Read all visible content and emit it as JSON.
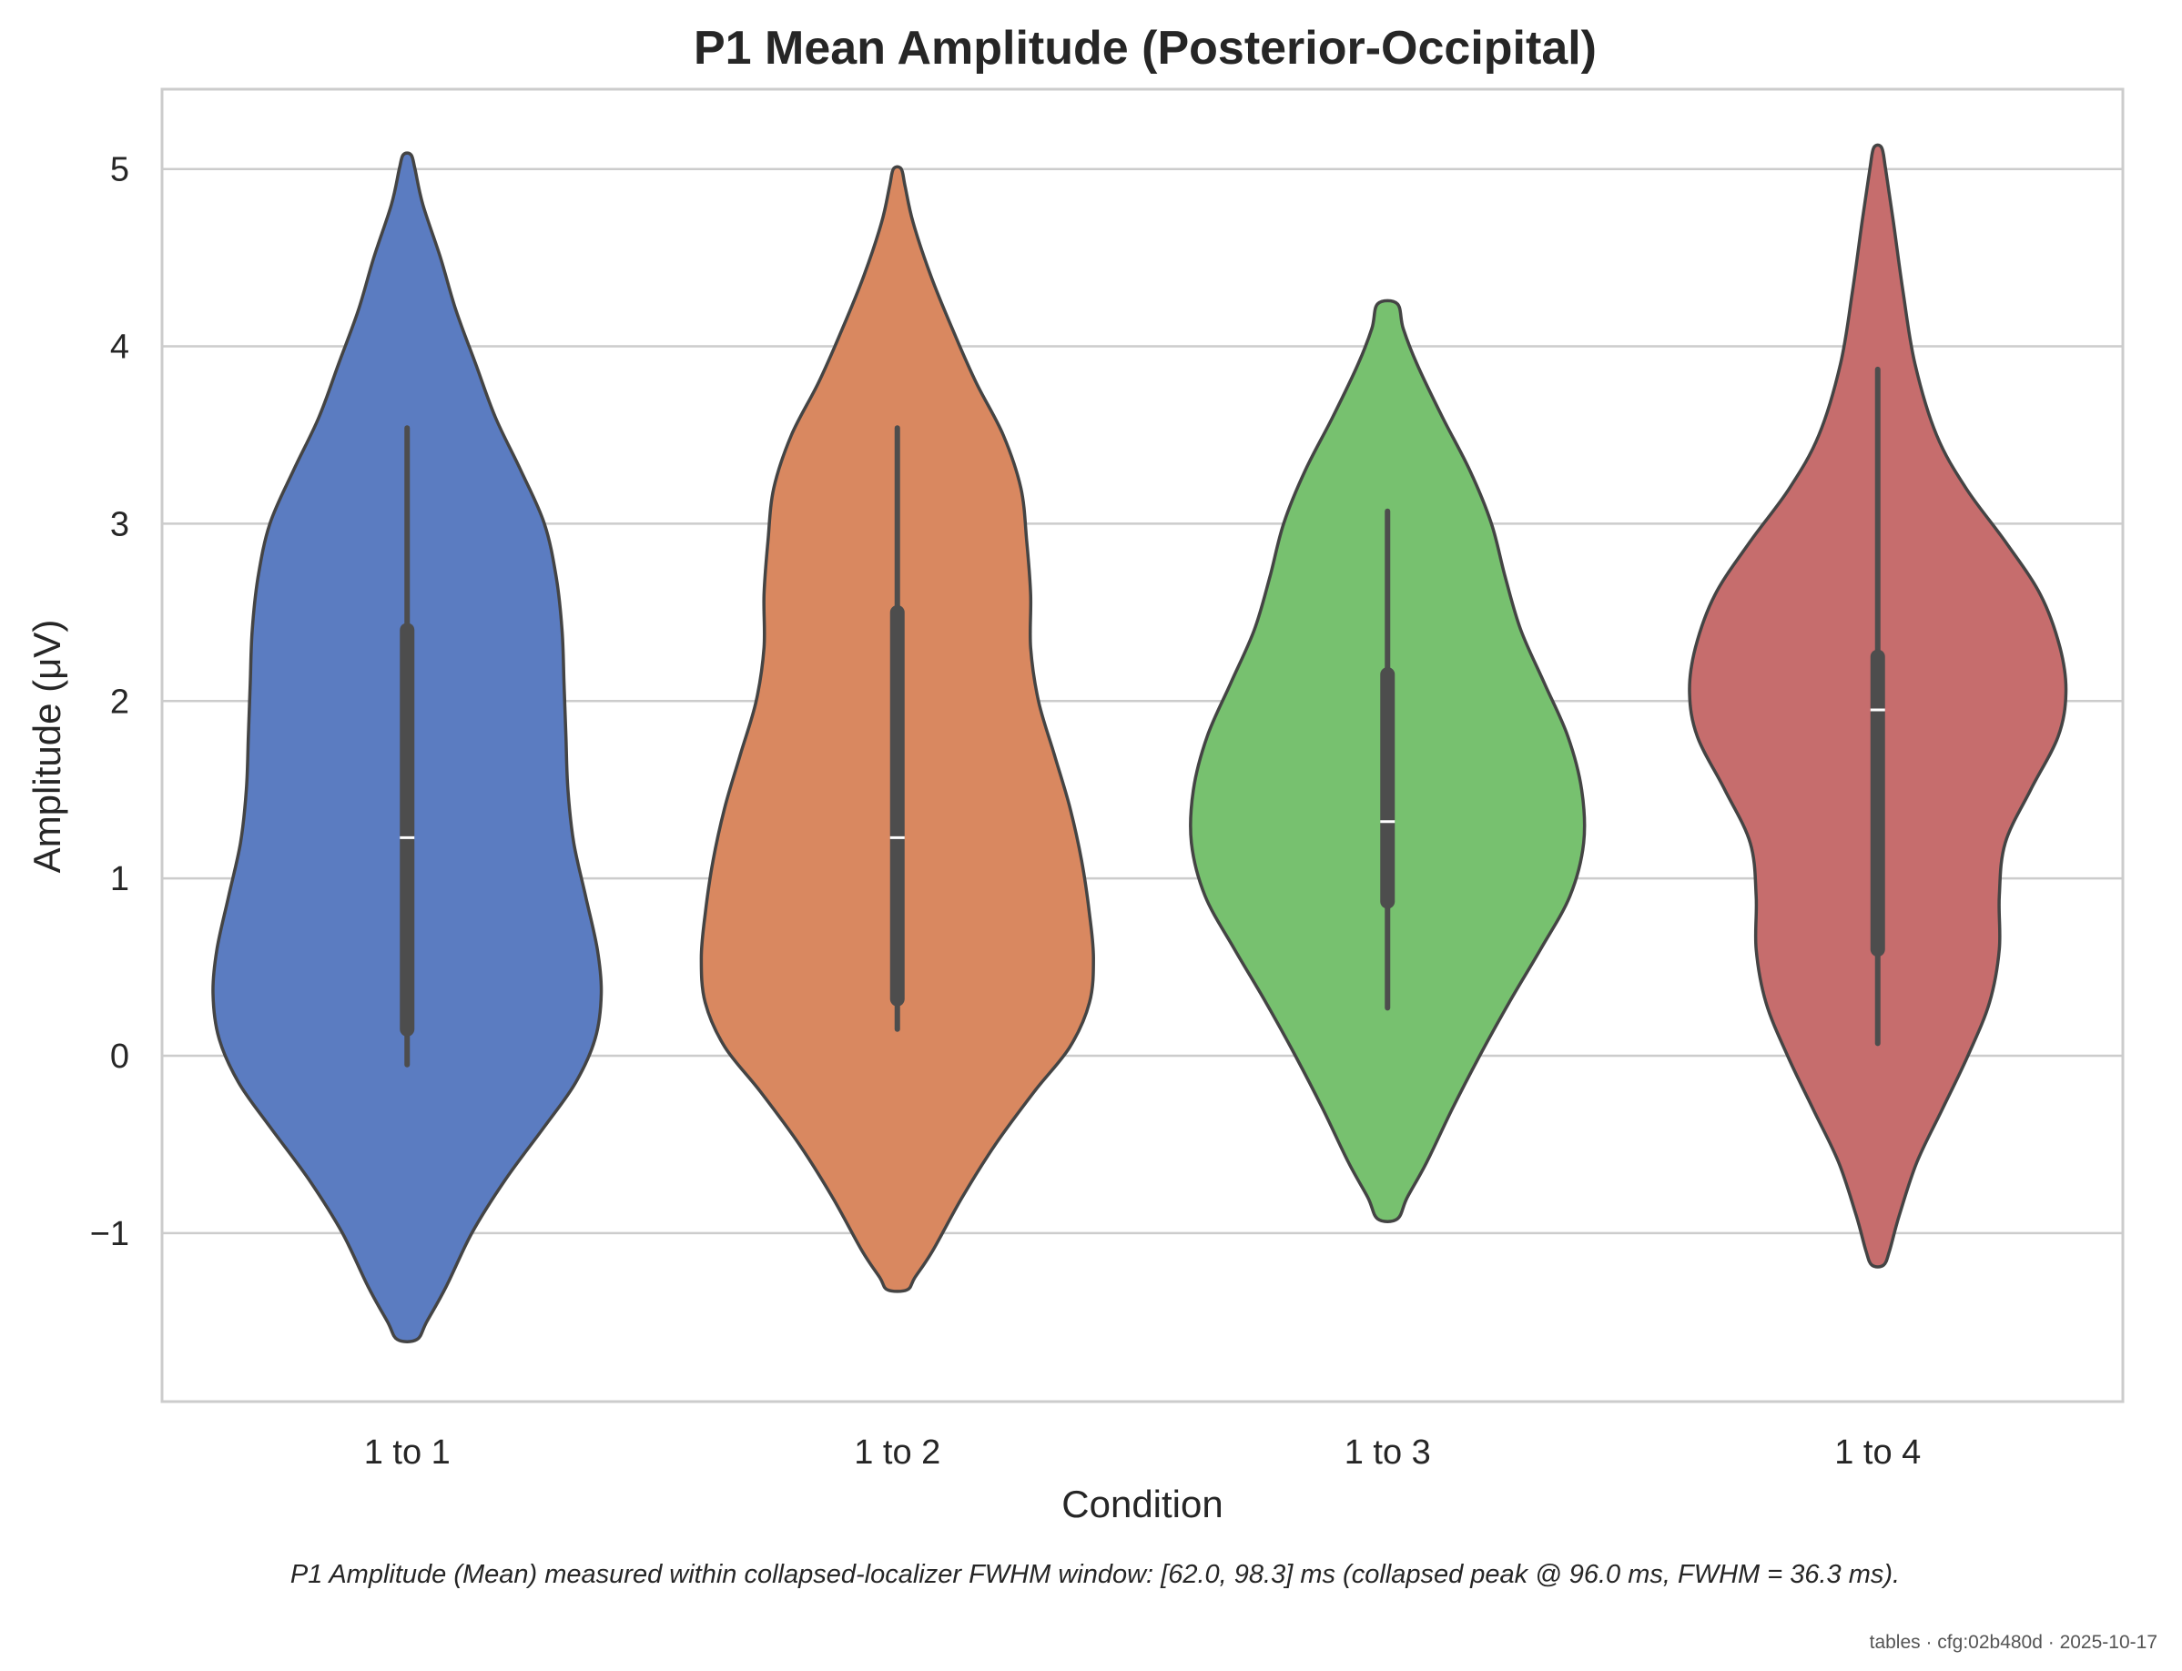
{
  "chart_data": {
    "type": "violin",
    "title": "P1 Mean Amplitude (Posterior-Occipital)",
    "xlabel": "Condition",
    "ylabel": "Amplitude (μV)",
    "categories": [
      "1 to 1",
      "1 to 2",
      "1 to 3",
      "1 to 4"
    ],
    "ylim": [
      -1.95,
      5.45
    ],
    "yticks": [
      -1,
      0,
      1,
      2,
      3,
      4,
      5
    ],
    "ytick_labels": [
      "−1",
      "0",
      "1",
      "2",
      "3",
      "4",
      "5"
    ],
    "grid": "horizontal",
    "legend": "none",
    "colors": [
      "#5b7cc1",
      "#d98860",
      "#77c16f",
      "#c66d6d"
    ],
    "series": [
      {
        "category": "1 to 1",
        "min": -0.05,
        "q1": 0.15,
        "median": 1.23,
        "q3": 2.4,
        "max": 3.54,
        "density": [
          [
            5.08,
            0.02
          ],
          [
            5.0,
            0.04
          ],
          [
            4.8,
            0.08
          ],
          [
            4.5,
            0.17
          ],
          [
            4.2,
            0.25
          ],
          [
            3.9,
            0.35
          ],
          [
            3.6,
            0.45
          ],
          [
            3.3,
            0.58
          ],
          [
            3.0,
            0.7
          ],
          [
            2.7,
            0.76
          ],
          [
            2.4,
            0.79
          ],
          [
            2.1,
            0.8
          ],
          [
            1.8,
            0.81
          ],
          [
            1.5,
            0.82
          ],
          [
            1.2,
            0.85
          ],
          [
            0.9,
            0.91
          ],
          [
            0.6,
            0.97
          ],
          [
            0.35,
            0.99
          ],
          [
            0.1,
            0.96
          ],
          [
            -0.15,
            0.86
          ],
          [
            -0.4,
            0.7
          ],
          [
            -0.7,
            0.5
          ],
          [
            -1.0,
            0.33
          ],
          [
            -1.3,
            0.2
          ],
          [
            -1.5,
            0.1
          ],
          [
            -1.6,
            0.05
          ]
        ]
      },
      {
        "category": "1 to 2",
        "min": 0.15,
        "q1": 0.32,
        "median": 1.23,
        "q3": 2.5,
        "max": 3.54,
        "density": [
          [
            5.0,
            0.02
          ],
          [
            4.9,
            0.04
          ],
          [
            4.7,
            0.08
          ],
          [
            4.4,
            0.17
          ],
          [
            4.1,
            0.28
          ],
          [
            3.8,
            0.4
          ],
          [
            3.5,
            0.54
          ],
          [
            3.2,
            0.63
          ],
          [
            2.9,
            0.66
          ],
          [
            2.6,
            0.68
          ],
          [
            2.3,
            0.68
          ],
          [
            2.0,
            0.72
          ],
          [
            1.7,
            0.8
          ],
          [
            1.4,
            0.88
          ],
          [
            1.1,
            0.94
          ],
          [
            0.8,
            0.98
          ],
          [
            0.55,
            1.0
          ],
          [
            0.3,
            0.98
          ],
          [
            0.05,
            0.88
          ],
          [
            -0.2,
            0.7
          ],
          [
            -0.5,
            0.5
          ],
          [
            -0.8,
            0.33
          ],
          [
            -1.1,
            0.18
          ],
          [
            -1.25,
            0.09
          ],
          [
            -1.32,
            0.05
          ]
        ]
      },
      {
        "category": "1 to 3",
        "min": 0.27,
        "q1": 0.87,
        "median": 1.32,
        "q3": 2.15,
        "max": 3.07,
        "density": [
          [
            4.24,
            0.05
          ],
          [
            4.1,
            0.08
          ],
          [
            3.9,
            0.15
          ],
          [
            3.6,
            0.28
          ],
          [
            3.3,
            0.42
          ],
          [
            3.0,
            0.53
          ],
          [
            2.7,
            0.6
          ],
          [
            2.4,
            0.68
          ],
          [
            2.1,
            0.8
          ],
          [
            1.8,
            0.92
          ],
          [
            1.5,
            0.99
          ],
          [
            1.2,
            1.0
          ],
          [
            0.9,
            0.93
          ],
          [
            0.6,
            0.78
          ],
          [
            0.3,
            0.62
          ],
          [
            0.0,
            0.47
          ],
          [
            -0.3,
            0.33
          ],
          [
            -0.6,
            0.2
          ],
          [
            -0.8,
            0.1
          ],
          [
            -0.92,
            0.05
          ]
        ]
      },
      {
        "category": "1 to 4",
        "min": 0.07,
        "q1": 0.6,
        "median": 1.95,
        "q3": 2.25,
        "max": 3.87,
        "density": [
          [
            5.12,
            0.02
          ],
          [
            5.0,
            0.04
          ],
          [
            4.7,
            0.08
          ],
          [
            4.3,
            0.13
          ],
          [
            3.9,
            0.19
          ],
          [
            3.5,
            0.3
          ],
          [
            3.2,
            0.45
          ],
          [
            2.9,
            0.65
          ],
          [
            2.6,
            0.83
          ],
          [
            2.3,
            0.93
          ],
          [
            2.05,
            0.96
          ],
          [
            1.8,
            0.92
          ],
          [
            1.5,
            0.78
          ],
          [
            1.2,
            0.65
          ],
          [
            0.9,
            0.62
          ],
          [
            0.6,
            0.62
          ],
          [
            0.3,
            0.57
          ],
          [
            0.0,
            0.46
          ],
          [
            -0.3,
            0.33
          ],
          [
            -0.6,
            0.2
          ],
          [
            -0.9,
            0.11
          ],
          [
            -1.1,
            0.06
          ],
          [
            -1.18,
            0.03
          ]
        ]
      }
    ]
  },
  "caption": "P1 Amplitude (Mean) measured within collapsed-localizer FWHM window: [62.0, 98.3] ms (collapsed peak @ 96.0 ms, FWHM = 36.3 ms).",
  "footer": "tables · cfg:02b480d · 2025-10-17"
}
